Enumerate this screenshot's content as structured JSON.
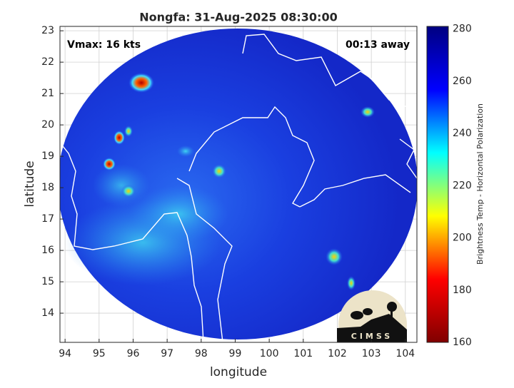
{
  "map": {
    "title": "Nongfa: 31-Aug-2025 08:30:00",
    "annotations": {
      "left": "Vmax: 16 kts",
      "right": "00:13 away"
    },
    "xlabel": "longitude",
    "ylabel": "latitude",
    "xlim": [
      93.85,
      104.34
    ],
    "ylim": [
      13.07,
      23.14
    ],
    "xticks": [
      94,
      95,
      96,
      97,
      98,
      99,
      100,
      101,
      102,
      103,
      104
    ],
    "yticks": [
      14,
      15,
      16,
      17,
      18,
      19,
      20,
      21,
      22,
      23
    ],
    "grid": true,
    "colorbar": {
      "label": "Brightness Temp - Horizontal Polarization",
      "lim": [
        160,
        281
      ],
      "ticks": [
        160,
        180,
        200,
        220,
        240,
        260,
        280
      ],
      "colormap": [
        "#000080",
        "#0000ff",
        "#00ffff",
        "#ffff00",
        "#ff0000",
        "#800000"
      ]
    },
    "logo": "CIMSS"
  }
}
